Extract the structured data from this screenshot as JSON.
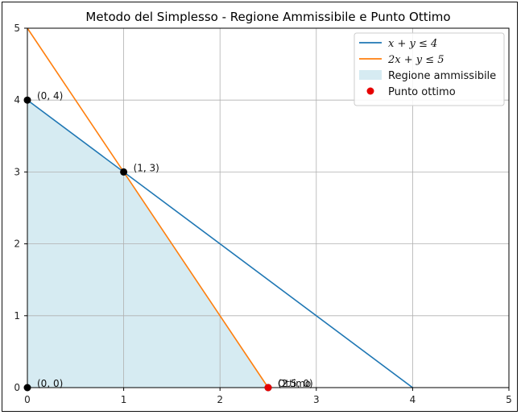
{
  "chart_data": {
    "type": "line",
    "title": "Metodo del Simplesso - Regione Ammissibile e Punto Ottimo",
    "xlabel": "",
    "ylabel": "",
    "xlim": [
      0,
      5
    ],
    "ylim": [
      0,
      5
    ],
    "grid": true,
    "xticks": [
      "0",
      "1",
      "2",
      "3",
      "4",
      "5"
    ],
    "yticks": [
      "0",
      "1",
      "2",
      "3",
      "4",
      "5"
    ],
    "series": [
      {
        "name": "x + y ≤ 4",
        "color": "#1f77b4",
        "x": [
          0,
          4
        ],
        "y": [
          4,
          0
        ]
      },
      {
        "name": "2x + y ≤ 5",
        "color": "#ff7f0e",
        "x": [
          0,
          2.5
        ],
        "y": [
          5,
          0
        ]
      }
    ],
    "region": {
      "name": "Regione ammissibile",
      "color": "#add8e6",
      "vertices": [
        [
          0,
          0
        ],
        [
          0,
          4
        ],
        [
          1,
          3
        ],
        [
          2.5,
          0
        ]
      ]
    },
    "vertices": [
      {
        "x": 0,
        "y": 0,
        "label": "(0, 0)"
      },
      {
        "x": 0,
        "y": 4,
        "label": "(0, 4)"
      },
      {
        "x": 1,
        "y": 3,
        "label": "(1, 3)"
      },
      {
        "x": 2.5,
        "y": 0,
        "label": "(2.5, 0)"
      }
    ],
    "optimum": {
      "name": "Punto ottimo",
      "x": 2.5,
      "y": 0,
      "color": "#e60000",
      "label": "Ottimo"
    },
    "legend": {
      "placement": "top-right",
      "entries": [
        {
          "label": "x + y ≤ 4",
          "kind": "line",
          "color": "#1f77b4"
        },
        {
          "label": "2x + y ≤ 5",
          "kind": "line",
          "color": "#ff7f0e"
        },
        {
          "label": "Regione ammissibile",
          "kind": "patch",
          "color": "#add8e6"
        },
        {
          "label": "Punto ottimo",
          "kind": "marker",
          "color": "#e60000"
        }
      ]
    }
  }
}
